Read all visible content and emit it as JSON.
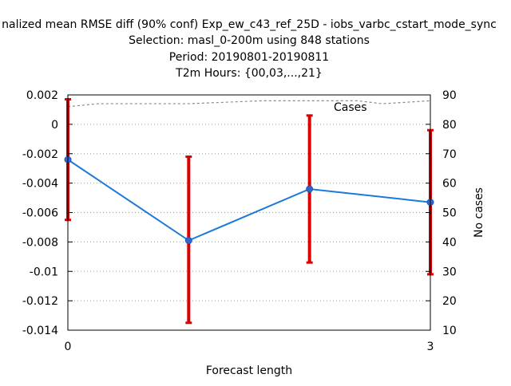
{
  "chart_data": {
    "type": "line",
    "title_lines": [
      "nalized mean RMSE diff (90% conf) Exp_ew_c43_ref_25D - iobs_varbc_cstart_mode_sync",
      "Selection: masl_0-200m using   848 stations",
      "Period: 20190801-20190811",
      "T2m   Hours: {00,03,...,21}"
    ],
    "xlabel": "Forecast length",
    "ylabel": "",
    "y2label": "No cases",
    "xlim": [
      0,
      3
    ],
    "ylim": [
      -0.014,
      0.002
    ],
    "y2lim": [
      10,
      90
    ],
    "x_ticks": [
      {
        "value": 0,
        "label": "0"
      },
      {
        "value": 3,
        "label": "3"
      }
    ],
    "y_ticks": [
      {
        "value": 0.002,
        "label": "0.002"
      },
      {
        "value": 0,
        "label": "0"
      },
      {
        "value": -0.002,
        "label": "-0.002"
      },
      {
        "value": -0.004,
        "label": "-0.004"
      },
      {
        "value": -0.006,
        "label": "-0.006"
      },
      {
        "value": -0.008,
        "label": "-0.008"
      },
      {
        "value": -0.01,
        "label": "-0.01"
      },
      {
        "value": -0.012,
        "label": "-0.012"
      },
      {
        "value": -0.014,
        "label": "-0.014"
      }
    ],
    "y2_ticks": [
      {
        "value": 90,
        "label": "90"
      },
      {
        "value": 80,
        "label": "80"
      },
      {
        "value": 70,
        "label": "70"
      },
      {
        "value": 60,
        "label": "60"
      },
      {
        "value": 50,
        "label": "50"
      },
      {
        "value": 40,
        "label": "40"
      },
      {
        "value": 30,
        "label": "30"
      },
      {
        "value": 20,
        "label": "20"
      },
      {
        "value": 10,
        "label": "10"
      }
    ],
    "grid": true,
    "series": [
      {
        "type": "line",
        "color": "#1a7ad9",
        "marker_color": "#3366cc",
        "x": [
          0,
          1,
          2,
          3
        ],
        "y": [
          -0.0024,
          -0.0079,
          -0.0044,
          -0.0053
        ]
      }
    ],
    "error_bars": {
      "color": "#dd0000",
      "x": [
        0,
        1,
        2,
        3
      ],
      "low": [
        -0.0065,
        -0.0135,
        -0.0094,
        -0.0102
      ],
      "high": [
        0.0017,
        -0.0022,
        0.0006,
        -0.0004
      ]
    },
    "cases": {
      "label": "Cases",
      "axis": "y2",
      "color": "#888888",
      "x": [
        0,
        0.25,
        0.5,
        1.0,
        1.6,
        2.0,
        2.4,
        2.6,
        3.0
      ],
      "y": [
        86,
        87,
        87,
        87,
        88,
        88,
        88,
        87,
        88
      ]
    }
  }
}
